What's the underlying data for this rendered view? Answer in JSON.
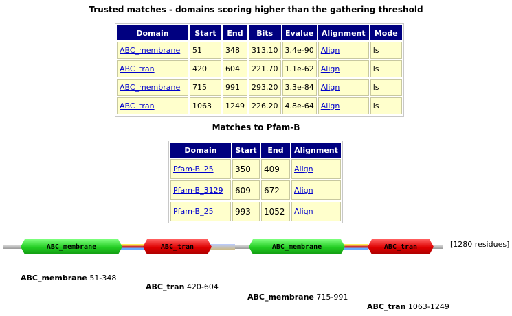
{
  "trusted": {
    "title": "Trusted matches - domains scoring higher than the gathering threshold",
    "headers": [
      "Domain",
      "Start",
      "End",
      "Bits",
      "Evalue",
      "Alignment",
      "Mode"
    ],
    "rows": [
      {
        "domain": "ABC_membrane",
        "start": "51",
        "end": "348",
        "bits": "313.10",
        "evalue": "3.4e-90",
        "alignment": "Align",
        "mode": "ls"
      },
      {
        "domain": "ABC_tran",
        "start": "420",
        "end": "604",
        "bits": "221.70",
        "evalue": "1.1e-62",
        "alignment": "Align",
        "mode": "ls"
      },
      {
        "domain": "ABC_membrane",
        "start": "715",
        "end": "991",
        "bits": "293.20",
        "evalue": "3.3e-84",
        "alignment": "Align",
        "mode": "ls"
      },
      {
        "domain": "ABC_tran",
        "start": "1063",
        "end": "1249",
        "bits": "226.20",
        "evalue": "4.8e-64",
        "alignment": "Align",
        "mode": "ls"
      }
    ]
  },
  "pfamb": {
    "title": "Matches to Pfam-B",
    "headers": [
      "Domain",
      "Start",
      "End",
      "Alignment"
    ],
    "rows": [
      {
        "domain": "Pfam-B_25",
        "start": "350",
        "end": "409",
        "alignment": "Align"
      },
      {
        "domain": "Pfam-B_3129",
        "start": "609",
        "end": "672",
        "alignment": "Align"
      },
      {
        "domain": "Pfam-B_25",
        "start": "993",
        "end": "1052",
        "alignment": "Align"
      }
    ]
  },
  "graphic": {
    "length_label": "[1280 residues]",
    "domains": [
      {
        "name": "ABC_membrane",
        "color": "#22cc22"
      },
      {
        "name": "ABC_tran",
        "color": "#dd0000"
      },
      {
        "name": "ABC_membrane",
        "color": "#22cc22"
      },
      {
        "name": "ABC_tran",
        "color": "#dd0000"
      }
    ],
    "labels": [
      {
        "name": "ABC_membrane",
        "range": "51-348"
      },
      {
        "name": "ABC_tran",
        "range": "420-604"
      },
      {
        "name": "ABC_membrane",
        "range": "715-991"
      },
      {
        "name": "ABC_tran",
        "range": "1063-1249"
      }
    ]
  }
}
